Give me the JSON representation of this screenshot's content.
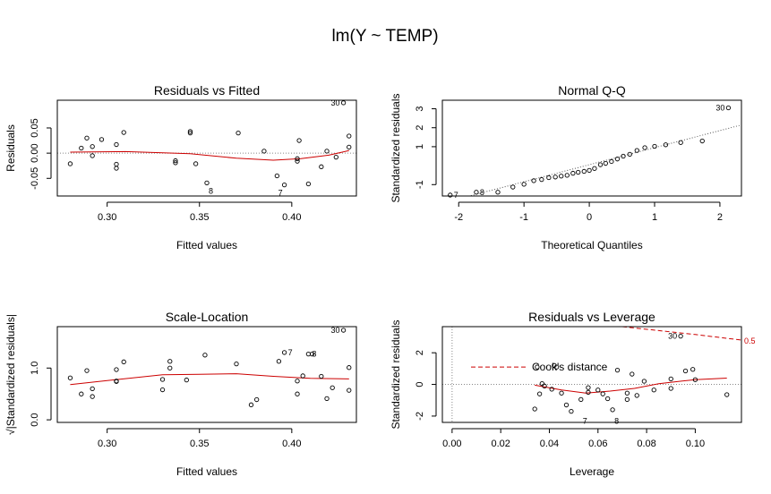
{
  "main_title": "lm(Y ~ TEMP)",
  "colors": {
    "fit_line": "#cc0000",
    "reference_line": "#888888",
    "points": "#000000",
    "cooks": "#cc0000"
  },
  "chart_data": [
    {
      "id": "p1",
      "type": "scatter",
      "title": "Residuals vs Fitted",
      "xlabel": "Fitted values",
      "ylabel": "Residuals",
      "xlim": [
        0.273,
        0.435
      ],
      "ylim": [
        -0.085,
        0.105
      ],
      "xticks": [
        0.3,
        0.35,
        0.4
      ],
      "xtick_labels": [
        "0.30",
        "0.35",
        "0.40"
      ],
      "yticks": [
        -0.05,
        0.0,
        0.05
      ],
      "ytick_labels": [
        "-0.05",
        "0.00",
        "0.05"
      ],
      "hline": 0,
      "points": [
        {
          "x": 0.28,
          "y": -0.021
        },
        {
          "x": 0.286,
          "y": 0.01
        },
        {
          "x": 0.289,
          "y": 0.03
        },
        {
          "x": 0.292,
          "y": -0.005
        },
        {
          "x": 0.292,
          "y": 0.013
        },
        {
          "x": 0.297,
          "y": 0.027
        },
        {
          "x": 0.305,
          "y": -0.022
        },
        {
          "x": 0.305,
          "y": -0.03
        },
        {
          "x": 0.305,
          "y": 0.017
        },
        {
          "x": 0.309,
          "y": 0.041
        },
        {
          "x": 0.337,
          "y": -0.015
        },
        {
          "x": 0.337,
          "y": -0.019
        },
        {
          "x": 0.345,
          "y": 0.04
        },
        {
          "x": 0.345,
          "y": 0.043
        },
        {
          "x": 0.348,
          "y": -0.021
        },
        {
          "x": 0.354,
          "y": -0.059
        },
        {
          "x": 0.371,
          "y": 0.04
        },
        {
          "x": 0.385,
          "y": 0.004
        },
        {
          "x": 0.392,
          "y": -0.045
        },
        {
          "x": 0.396,
          "y": -0.063
        },
        {
          "x": 0.403,
          "y": -0.016
        },
        {
          "x": 0.403,
          "y": -0.011
        },
        {
          "x": 0.404,
          "y": 0.025
        },
        {
          "x": 0.409,
          "y": -0.061
        },
        {
          "x": 0.416,
          "y": -0.027
        },
        {
          "x": 0.419,
          "y": 0.004
        },
        {
          "x": 0.424,
          "y": -0.008
        },
        {
          "x": 0.428,
          "y": 0.1
        },
        {
          "x": 0.431,
          "y": 0.034
        },
        {
          "x": 0.431,
          "y": 0.012
        }
      ],
      "smoother": [
        {
          "x": 0.28,
          "y": 0.002
        },
        {
          "x": 0.31,
          "y": 0.003
        },
        {
          "x": 0.345,
          "y": -0.001
        },
        {
          "x": 0.37,
          "y": -0.01
        },
        {
          "x": 0.39,
          "y": -0.014
        },
        {
          "x": 0.405,
          "y": -0.011
        },
        {
          "x": 0.42,
          "y": -0.004
        },
        {
          "x": 0.431,
          "y": 0.005
        }
      ],
      "labels": [
        {
          "text": "30",
          "x": 0.428,
          "y": 0.1,
          "side": "left"
        },
        {
          "text": "8",
          "x": 0.354,
          "y": -0.059,
          "side": "below-right"
        },
        {
          "text": "7",
          "x": 0.396,
          "y": -0.063,
          "side": "below-left"
        }
      ]
    },
    {
      "id": "p2",
      "type": "scatter",
      "title": "Normal Q-Q",
      "xlabel": "Theoretical Quantiles",
      "ylabel": "Standardized residuals",
      "xlim": [
        -2.25,
        2.33
      ],
      "ylim": [
        -1.6,
        3.45
      ],
      "xticks": [
        -2,
        -1,
        0,
        1,
        2
      ],
      "xtick_labels": [
        "-2",
        "-1",
        "0",
        "1",
        "2"
      ],
      "yticks": [
        -1,
        1,
        2,
        3
      ],
      "ytick_labels": [
        "-1",
        "1",
        "2",
        "3"
      ],
      "refline": {
        "intercept": 0.05,
        "slope": 0.9
      },
      "points": [
        {
          "x": -2.13,
          "y": -1.55
        },
        {
          "x": -1.73,
          "y": -1.4
        },
        {
          "x": -1.4,
          "y": -1.4
        },
        {
          "x": -1.17,
          "y": -1.13
        },
        {
          "x": -1.0,
          "y": -0.98
        },
        {
          "x": -0.85,
          "y": -0.79
        },
        {
          "x": -0.73,
          "y": -0.73
        },
        {
          "x": -0.62,
          "y": -0.63
        },
        {
          "x": -0.52,
          "y": -0.6
        },
        {
          "x": -0.43,
          "y": -0.55
        },
        {
          "x": -0.34,
          "y": -0.51
        },
        {
          "x": -0.25,
          "y": -0.4
        },
        {
          "x": -0.17,
          "y": -0.35
        },
        {
          "x": -0.08,
          "y": -0.3
        },
        {
          "x": 0.0,
          "y": -0.25
        },
        {
          "x": 0.08,
          "y": -0.15
        },
        {
          "x": 0.17,
          "y": 0.05
        },
        {
          "x": 0.25,
          "y": 0.12
        },
        {
          "x": 0.34,
          "y": 0.22
        },
        {
          "x": 0.43,
          "y": 0.35
        },
        {
          "x": 0.52,
          "y": 0.5
        },
        {
          "x": 0.62,
          "y": 0.6
        },
        {
          "x": 0.73,
          "y": 0.8
        },
        {
          "x": 0.85,
          "y": 0.95
        },
        {
          "x": 1.0,
          "y": 1.02
        },
        {
          "x": 1.17,
          "y": 1.1
        },
        {
          "x": 1.4,
          "y": 1.22
        },
        {
          "x": 1.73,
          "y": 1.3
        },
        {
          "x": 2.13,
          "y": 3.05
        }
      ],
      "labels": [
        {
          "text": "7",
          "x": -2.13,
          "y": -1.55,
          "side": "right"
        },
        {
          "text": "8",
          "x": -1.73,
          "y": -1.4,
          "side": "right"
        },
        {
          "text": "30",
          "x": 2.13,
          "y": 3.05,
          "side": "left"
        }
      ]
    },
    {
      "id": "p3",
      "type": "scatter",
      "title": "Scale-Location",
      "xlabel": "Fitted values",
      "ylabel": "√|Standardized residuals|",
      "xlim": [
        0.273,
        0.435
      ],
      "ylim": [
        -0.05,
        1.8
      ],
      "xticks": [
        0.3,
        0.35,
        0.4
      ],
      "xtick_labels": [
        "0.30",
        "0.35",
        "0.40"
      ],
      "yticks": [
        0.0,
        1.0
      ],
      "ytick_labels": [
        "0.0",
        "1.0"
      ],
      "points": [
        {
          "x": 0.28,
          "y": 0.81
        },
        {
          "x": 0.286,
          "y": 0.5
        },
        {
          "x": 0.289,
          "y": 0.95
        },
        {
          "x": 0.292,
          "y": 0.45
        },
        {
          "x": 0.292,
          "y": 0.6
        },
        {
          "x": 0.305,
          "y": 0.74
        },
        {
          "x": 0.305,
          "y": 0.75
        },
        {
          "x": 0.305,
          "y": 0.97
        },
        {
          "x": 0.309,
          "y": 1.12
        },
        {
          "x": 0.33,
          "y": 0.58
        },
        {
          "x": 0.33,
          "y": 0.78
        },
        {
          "x": 0.334,
          "y": 1.0
        },
        {
          "x": 0.334,
          "y": 1.13
        },
        {
          "x": 0.343,
          "y": 0.77
        },
        {
          "x": 0.353,
          "y": 1.25
        },
        {
          "x": 0.37,
          "y": 1.08
        },
        {
          "x": 0.378,
          "y": 0.29
        },
        {
          "x": 0.381,
          "y": 0.39
        },
        {
          "x": 0.393,
          "y": 1.13
        },
        {
          "x": 0.396,
          "y": 1.3
        },
        {
          "x": 0.403,
          "y": 0.75
        },
        {
          "x": 0.403,
          "y": 0.5
        },
        {
          "x": 0.406,
          "y": 0.85
        },
        {
          "x": 0.409,
          "y": 1.27
        },
        {
          "x": 0.411,
          "y": 1.27
        },
        {
          "x": 0.416,
          "y": 0.84
        },
        {
          "x": 0.419,
          "y": 0.41
        },
        {
          "x": 0.422,
          "y": 0.62
        },
        {
          "x": 0.428,
          "y": 1.73
        },
        {
          "x": 0.431,
          "y": 1.01
        },
        {
          "x": 0.431,
          "y": 0.57
        }
      ],
      "smoother": [
        {
          "x": 0.28,
          "y": 0.68
        },
        {
          "x": 0.3,
          "y": 0.76
        },
        {
          "x": 0.33,
          "y": 0.87
        },
        {
          "x": 0.35,
          "y": 0.88
        },
        {
          "x": 0.37,
          "y": 0.89
        },
        {
          "x": 0.39,
          "y": 0.84
        },
        {
          "x": 0.41,
          "y": 0.8
        },
        {
          "x": 0.431,
          "y": 0.79
        }
      ],
      "labels": [
        {
          "text": "7",
          "x": 0.396,
          "y": 1.3,
          "side": "right"
        },
        {
          "text": "8",
          "x": 0.409,
          "y": 1.27,
          "side": "right"
        },
        {
          "text": "30",
          "x": 0.428,
          "y": 1.73,
          "side": "left"
        }
      ]
    },
    {
      "id": "p4",
      "type": "scatter",
      "title": "Residuals vs Leverage",
      "xlabel": "Leverage",
      "ylabel": "Standardized residuals",
      "xlim": [
        -0.004,
        0.119
      ],
      "ylim": [
        -2.4,
        3.65
      ],
      "xticks": [
        0.0,
        0.02,
        0.04,
        0.06,
        0.08,
        0.1
      ],
      "xtick_labels": [
        "0.00",
        "0.02",
        "0.04",
        "0.06",
        "0.08",
        "0.10"
      ],
      "yticks": [
        -2,
        0,
        2
      ],
      "ytick_labels": [
        "-2",
        "0",
        "2"
      ],
      "hline": 0,
      "vline": 0,
      "legend": {
        "label": "Cook's distance",
        "position": "left"
      },
      "cooks_contour_label": "0.5",
      "cooks_contour": [
        {
          "x": 0.07,
          "y": 3.65
        },
        {
          "x": 0.085,
          "y": 3.4
        },
        {
          "x": 0.1,
          "y": 3.15
        },
        {
          "x": 0.119,
          "y": 2.8
        }
      ],
      "points": [
        {
          "x": 0.034,
          "y": -1.55
        },
        {
          "x": 0.035,
          "y": 1.1
        },
        {
          "x": 0.036,
          "y": -0.6
        },
        {
          "x": 0.037,
          "y": 0.05
        },
        {
          "x": 0.038,
          "y": -0.1
        },
        {
          "x": 0.041,
          "y": -0.3
        },
        {
          "x": 0.042,
          "y": 1.2
        },
        {
          "x": 0.043,
          "y": 1.1
        },
        {
          "x": 0.045,
          "y": -0.55
        },
        {
          "x": 0.047,
          "y": -1.3
        },
        {
          "x": 0.049,
          "y": -1.7
        },
        {
          "x": 0.053,
          "y": -0.95
        },
        {
          "x": 0.056,
          "y": -0.2
        },
        {
          "x": 0.056,
          "y": -0.5
        },
        {
          "x": 0.06,
          "y": -0.35
        },
        {
          "x": 0.062,
          "y": -0.6
        },
        {
          "x": 0.064,
          "y": -0.9
        },
        {
          "x": 0.066,
          "y": -1.6
        },
        {
          "x": 0.068,
          "y": 0.9
        },
        {
          "x": 0.072,
          "y": -0.55
        },
        {
          "x": 0.072,
          "y": -0.95
        },
        {
          "x": 0.074,
          "y": 0.65
        },
        {
          "x": 0.076,
          "y": -0.7
        },
        {
          "x": 0.079,
          "y": 0.2
        },
        {
          "x": 0.083,
          "y": -0.35
        },
        {
          "x": 0.09,
          "y": -0.25
        },
        {
          "x": 0.09,
          "y": 0.35
        },
        {
          "x": 0.094,
          "y": 3.05
        },
        {
          "x": 0.096,
          "y": 0.85
        },
        {
          "x": 0.099,
          "y": 0.95
        },
        {
          "x": 0.1,
          "y": 0.3
        },
        {
          "x": 0.113,
          "y": -0.65
        }
      ],
      "smoother": [
        {
          "x": 0.034,
          "y": -0.05
        },
        {
          "x": 0.045,
          "y": -0.35
        },
        {
          "x": 0.055,
          "y": -0.55
        },
        {
          "x": 0.065,
          "y": -0.42
        },
        {
          "x": 0.075,
          "y": -0.25
        },
        {
          "x": 0.085,
          "y": 0.05
        },
        {
          "x": 0.1,
          "y": 0.3
        },
        {
          "x": 0.113,
          "y": 0.4
        }
      ],
      "labels": [
        {
          "text": "30",
          "x": 0.094,
          "y": 3.05,
          "side": "left"
        },
        {
          "text": "7",
          "x": 0.053,
          "y": -1.8,
          "side": "below-right"
        },
        {
          "text": "8",
          "x": 0.066,
          "y": -1.8,
          "side": "below-right"
        }
      ]
    }
  ]
}
